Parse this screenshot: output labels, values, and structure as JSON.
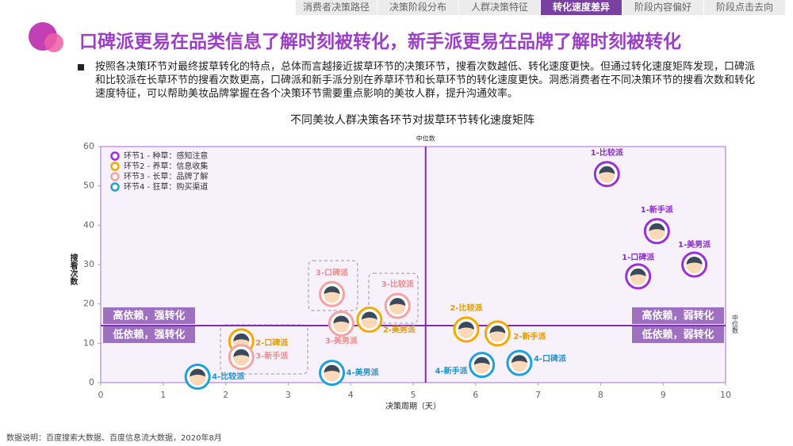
{
  "nav": {
    "tabs": [
      "消费者决策路径",
      "决策阶段分布",
      "人群决策特征",
      "转化速度差异",
      "阶段内容偏好",
      "阶段点击去向"
    ],
    "active": 3
  },
  "header": {
    "title": "口碑派更易在品类信息了解时刻被转化，新手派更易在品牌了解时刻被转化"
  },
  "body_text": "按照各决策环节对最终拔草转化的特点，总体而言越接近拔草环节的决策环节，搜看次数越低、转化速度更快。但通过转化速度矩阵发现，口碑派和比较派在长草环节的搜看次数更高，口碑派和新手派分别在养草环节和长草环节的转化速度更快。洞悉消费者在不同决策环节的搜看次数和转化速度特征，可以帮助美妆品牌掌握在各个决策环节需要重点影响的美妆人群，提升沟通效率。",
  "chart_data": {
    "type": "scatter",
    "title": "不同美妆人群决策各环节对拔草环节转化速度矩阵",
    "xlabel": "决策周期（天）",
    "ylabel": "搜看次数",
    "xlim": [
      0,
      10
    ],
    "ylim": [
      0,
      60
    ],
    "xticks": [
      0,
      1,
      2,
      3,
      4,
      5,
      6,
      7,
      8,
      9,
      10
    ],
    "yticks": [
      0,
      10,
      20,
      30,
      40,
      50,
      60
    ],
    "median": {
      "x": 5.2,
      "y": 14.5,
      "label": "中位数"
    },
    "quadrant_labels": {
      "top_left": "高依赖，强转化",
      "bottom_left": "低依赖，强转化",
      "top_right": "高依赖，弱转化",
      "bottom_right": "低依赖，弱转化"
    },
    "legend_position": "upper left",
    "series": [
      {
        "name": "环节1 - 种草：感知注意",
        "color": "#9b30d9",
        "x": [
          8.1,
          8.9,
          8.6,
          9.5
        ],
        "values": [
          53,
          38.5,
          27,
          30
        ],
        "labels": [
          "1-比较派",
          "1-新手派",
          "1-口碑派",
          "1-美男派"
        ]
      },
      {
        "name": "环节2 - 养草：信息收集",
        "color": "#f5a800",
        "x": [
          2.25,
          4.3,
          5.85,
          6.35
        ],
        "values": [
          10.5,
          16,
          13.5,
          12.5
        ],
        "labels": [
          "2-口碑派",
          "2-美男派",
          "2-比较派",
          "2-新手派"
        ]
      },
      {
        "name": "环节3 - 长草：品牌了解",
        "color": "#f4a3a3",
        "x": [
          3.7,
          4.75,
          3.85,
          2.25
        ],
        "values": [
          22.5,
          19.5,
          15,
          6.5
        ],
        "labels": [
          "3-口碑派",
          "3-比较派",
          "3-美男派",
          "3-新手派"
        ]
      },
      {
        "name": "环节4 - 狂草：购买渠道",
        "color": "#1fa0d8",
        "x": [
          1.55,
          3.7,
          6.1,
          6.7
        ],
        "values": [
          1.5,
          2.5,
          4.5,
          5
        ],
        "labels": [
          "4-比较派",
          "4-美男派",
          "4-新手派",
          "4-口碑派"
        ]
      }
    ]
  },
  "footer": "数据说明：百度搜索大数据、百度信息流大数据，2020年8月"
}
